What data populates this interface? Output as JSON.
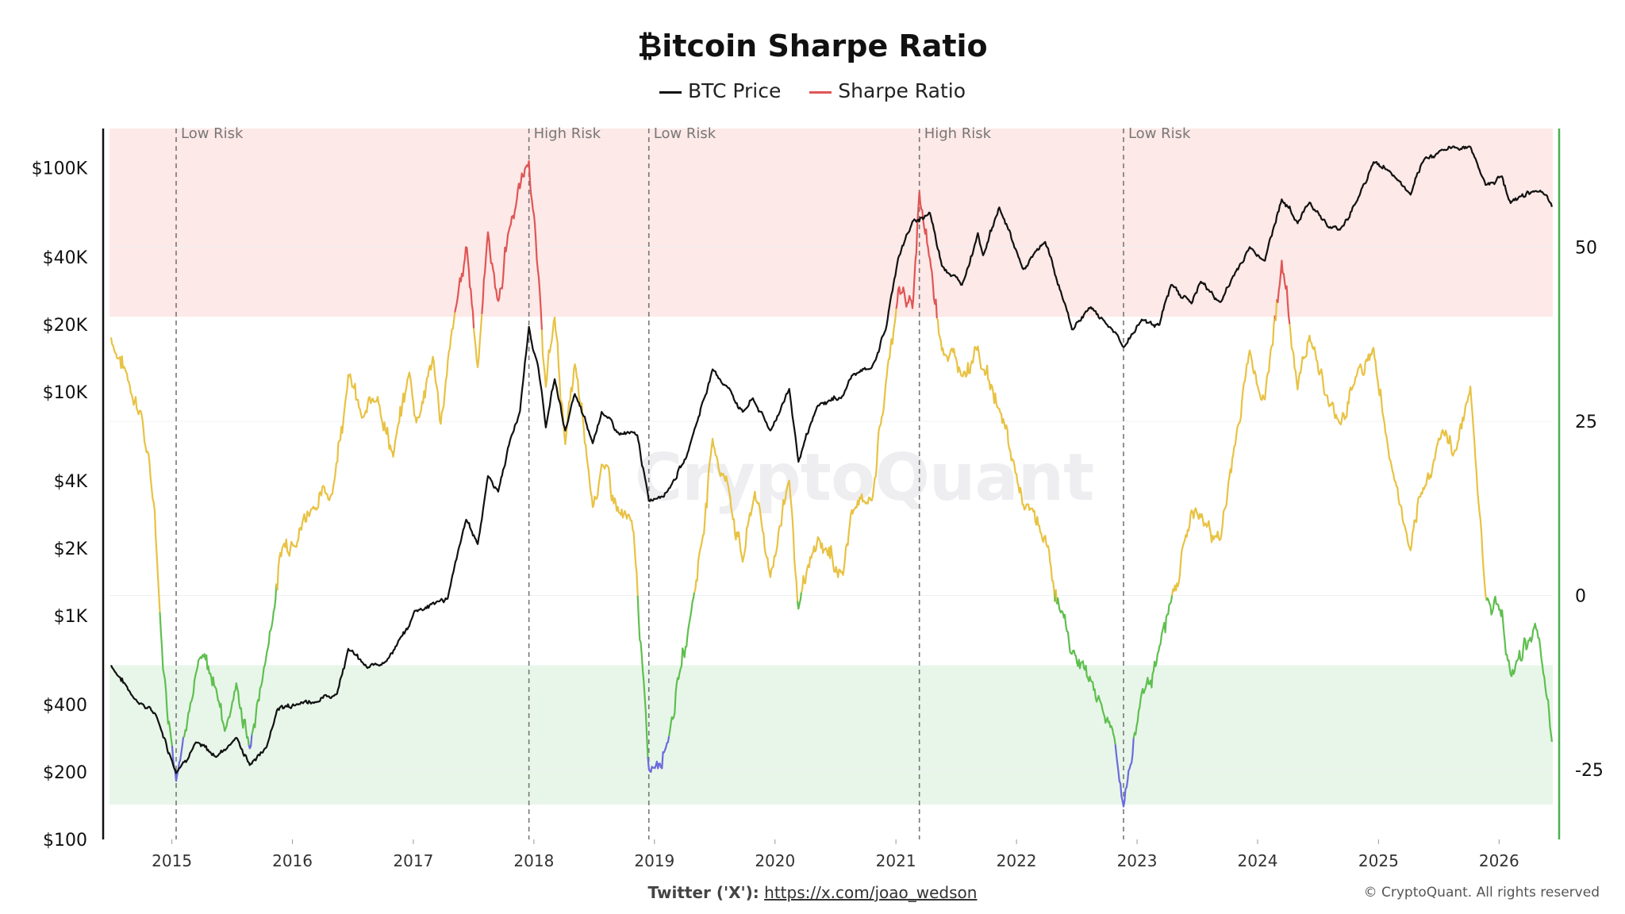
{
  "title": "₿itcoin Sharpe Ratio",
  "legend": [
    {
      "label": "BTC Price",
      "color": "#111111"
    },
    {
      "label": "Sharpe Ratio",
      "color": "#e05555"
    }
  ],
  "watermark": "CryptoQuant",
  "footer": {
    "label": "Twitter ('X'):",
    "link": "https://x.com/joao_wedson"
  },
  "copyright": "© CryptoQuant. All rights reserved",
  "colors": {
    "price": "#111111",
    "sharpe_high": "#e05555",
    "sharpe_mid": "#e8c243",
    "sharpe_low": "#5fbf4f",
    "sharpe_extreme_low": "#6b6bdc",
    "high_risk_band": "#fde9e7",
    "low_risk_band": "#e8f6ea",
    "right_axis": "#4caf50"
  },
  "chart_data": {
    "type": "line",
    "x_range": [
      "2014-07-01",
      "2026-06-15"
    ],
    "x_tick_labels": [
      "2015",
      "2016",
      "2017",
      "2018",
      "2019",
      "2020",
      "2021",
      "2022",
      "2023",
      "2024",
      "2025",
      "2026"
    ],
    "y_left": {
      "scale": "log",
      "range": [
        100,
        150000
      ],
      "tick_labels": [
        "$100",
        "$200",
        "$400",
        "$1K",
        "$2K",
        "$4K",
        "$10K",
        "$20K",
        "$40K",
        "$100K"
      ],
      "tick_values": [
        100,
        200,
        400,
        1000,
        2000,
        4000,
        10000,
        20000,
        40000,
        100000
      ]
    },
    "y_right": {
      "scale": "linear",
      "range": [
        -35,
        67
      ],
      "tick_labels": [
        "50",
        "25",
        "0",
        "-25"
      ],
      "tick_values": [
        50,
        25,
        0,
        -25
      ]
    },
    "bands": [
      {
        "name": "high-risk",
        "from": 40,
        "to": 67
      },
      {
        "name": "low-risk",
        "from": -30,
        "to": -10
      }
    ],
    "thresholds": {
      "high": 40,
      "low": 0,
      "extreme_low": -21
    },
    "annotations": [
      {
        "date": "2015-01-14",
        "label": "Low Risk"
      },
      {
        "date": "2017-12-17",
        "label": "High Risk"
      },
      {
        "date": "2018-12-15",
        "label": "Low Risk"
      },
      {
        "date": "2021-03-13",
        "label": "High Risk"
      },
      {
        "date": "2022-11-21",
        "label": "Low Risk"
      }
    ],
    "series": [
      {
        "name": "BTC Price",
        "axis": "left",
        "points": [
          [
            "2014-07-01",
            600
          ],
          [
            "2014-09-15",
            420
          ],
          [
            "2014-11-15",
            360
          ],
          [
            "2015-01-14",
            200
          ],
          [
            "2015-03-15",
            270
          ],
          [
            "2015-05-15",
            235
          ],
          [
            "2015-07-15",
            285
          ],
          [
            "2015-08-25",
            215
          ],
          [
            "2015-10-15",
            260
          ],
          [
            "2015-11-15",
            380
          ],
          [
            "2016-01-15",
            410
          ],
          [
            "2016-03-15",
            415
          ],
          [
            "2016-05-15",
            450
          ],
          [
            "2016-06-18",
            720
          ],
          [
            "2016-08-15",
            580
          ],
          [
            "2016-10-15",
            640
          ],
          [
            "2016-12-20",
            900
          ],
          [
            "2017-01-05",
            1050
          ],
          [
            "2017-03-15",
            1150
          ],
          [
            "2017-04-15",
            1200
          ],
          [
            "2017-06-10",
            2700
          ],
          [
            "2017-07-15",
            2100
          ],
          [
            "2017-08-15",
            4200
          ],
          [
            "2017-09-15",
            3600
          ],
          [
            "2017-10-20",
            6000
          ],
          [
            "2017-11-20",
            8200
          ],
          [
            "2017-12-17",
            19500
          ],
          [
            "2018-01-15",
            12500
          ],
          [
            "2018-02-06",
            7000
          ],
          [
            "2018-03-05",
            11400
          ],
          [
            "2018-04-06",
            6700
          ],
          [
            "2018-05-05",
            9800
          ],
          [
            "2018-06-28",
            5900
          ],
          [
            "2018-07-25",
            8200
          ],
          [
            "2018-09-15",
            6500
          ],
          [
            "2018-11-10",
            6400
          ],
          [
            "2018-12-15",
            3250
          ],
          [
            "2019-02-08",
            3600
          ],
          [
            "2019-04-05",
            5000
          ],
          [
            "2019-06-26",
            12500
          ],
          [
            "2019-08-15",
            10300
          ],
          [
            "2019-09-25",
            8100
          ],
          [
            "2019-10-26",
            9300
          ],
          [
            "2019-12-18",
            6700
          ],
          [
            "2020-02-13",
            10300
          ],
          [
            "2020-03-12",
            4900
          ],
          [
            "2020-05-10",
            8700
          ],
          [
            "2020-07-25",
            9600
          ],
          [
            "2020-08-20",
            11800
          ],
          [
            "2020-10-20",
            12800
          ],
          [
            "2020-12-01",
            19000
          ],
          [
            "2021-01-08",
            40000
          ],
          [
            "2021-02-20",
            57000
          ],
          [
            "2021-04-14",
            63000
          ],
          [
            "2021-05-20",
            37000
          ],
          [
            "2021-07-20",
            30000
          ],
          [
            "2021-09-06",
            51000
          ],
          [
            "2021-09-22",
            41000
          ],
          [
            "2021-11-10",
            67000
          ],
          [
            "2022-01-22",
            35000
          ],
          [
            "2022-03-29",
            47000
          ],
          [
            "2022-05-12",
            29000
          ],
          [
            "2022-06-18",
            19000
          ],
          [
            "2022-08-14",
            24000
          ],
          [
            "2022-10-15",
            19200
          ],
          [
            "2022-11-21",
            15800
          ],
          [
            "2023-01-15",
            21000
          ],
          [
            "2023-03-10",
            20000
          ],
          [
            "2023-04-14",
            30000
          ],
          [
            "2023-06-15",
            25000
          ],
          [
            "2023-07-13",
            31000
          ],
          [
            "2023-09-11",
            25000
          ],
          [
            "2023-10-25",
            34000
          ],
          [
            "2023-12-08",
            44000
          ],
          [
            "2024-01-23",
            39000
          ],
          [
            "2024-03-14",
            73000
          ],
          [
            "2024-05-01",
            57000
          ],
          [
            "2024-06-06",
            71000
          ],
          [
            "2024-08-05",
            54000
          ],
          [
            "2024-09-06",
            53000
          ],
          [
            "2024-10-29",
            72000
          ],
          [
            "2024-12-17",
            106000
          ],
          [
            "2025-02-03",
            97000
          ],
          [
            "2025-04-08",
            76000
          ],
          [
            "2025-05-22",
            110000
          ],
          [
            "2025-07-14",
            121000
          ],
          [
            "2025-08-14",
            123000
          ],
          [
            "2025-10-06",
            125000
          ],
          [
            "2025-11-21",
            84000
          ],
          [
            "2026-01-10",
            92000
          ],
          [
            "2026-02-05",
            70000
          ],
          [
            "2026-04-20",
            80000
          ],
          [
            "2026-05-15",
            76000
          ],
          [
            "2026-06-10",
            67000
          ]
        ]
      },
      {
        "name": "Sharpe Ratio",
        "axis": "right",
        "points": [
          [
            "2014-07-01",
            37
          ],
          [
            "2014-08-15",
            32
          ],
          [
            "2014-10-01",
            26
          ],
          [
            "2014-11-10",
            12
          ],
          [
            "2014-12-05",
            -10
          ],
          [
            "2015-01-14",
            -26
          ],
          [
            "2015-02-20",
            -16
          ],
          [
            "2015-04-01",
            -9
          ],
          [
            "2015-05-15",
            -13
          ],
          [
            "2015-06-10",
            -19
          ],
          [
            "2015-07-15",
            -13
          ],
          [
            "2015-08-25",
            -22
          ],
          [
            "2015-10-01",
            -12
          ],
          [
            "2015-11-05",
            -2
          ],
          [
            "2015-12-01",
            7
          ],
          [
            "2016-01-01",
            8
          ],
          [
            "2016-03-01",
            13
          ],
          [
            "2016-05-01",
            15
          ],
          [
            "2016-06-18",
            32
          ],
          [
            "2016-08-01",
            25
          ],
          [
            "2016-09-15",
            29
          ],
          [
            "2016-11-01",
            20
          ],
          [
            "2016-12-20",
            32
          ],
          [
            "2017-01-10",
            25
          ],
          [
            "2017-03-01",
            34
          ],
          [
            "2017-03-25",
            25
          ],
          [
            "2017-05-10",
            41
          ],
          [
            "2017-06-12",
            50
          ],
          [
            "2017-07-15",
            33
          ],
          [
            "2017-08-15",
            52
          ],
          [
            "2017-09-15",
            42
          ],
          [
            "2017-10-20",
            53
          ],
          [
            "2017-12-17",
            63
          ],
          [
            "2018-01-10",
            48
          ],
          [
            "2018-02-06",
            30
          ],
          [
            "2018-03-05",
            40
          ],
          [
            "2018-04-06",
            22
          ],
          [
            "2018-05-05",
            33
          ],
          [
            "2018-06-28",
            13
          ],
          [
            "2018-07-25",
            19
          ],
          [
            "2018-09-15",
            12
          ],
          [
            "2018-10-30",
            9
          ],
          [
            "2018-12-15",
            -25
          ],
          [
            "2019-02-08",
            -21
          ],
          [
            "2019-03-15",
            -12
          ],
          [
            "2019-04-20",
            -3
          ],
          [
            "2019-05-25",
            8
          ],
          [
            "2019-06-26",
            22
          ],
          [
            "2019-08-15",
            15
          ],
          [
            "2019-09-25",
            5
          ],
          [
            "2019-11-01",
            15
          ],
          [
            "2019-12-18",
            3
          ],
          [
            "2020-02-13",
            17
          ],
          [
            "2020-03-12",
            -2
          ],
          [
            "2020-05-10",
            8
          ],
          [
            "2020-07-25",
            3
          ],
          [
            "2020-08-20",
            12
          ],
          [
            "2020-10-20",
            14
          ],
          [
            "2020-12-01",
            30
          ],
          [
            "2021-01-08",
            44
          ],
          [
            "2021-02-20",
            41
          ],
          [
            "2021-03-13",
            58
          ],
          [
            "2021-04-14",
            48
          ],
          [
            "2021-05-20",
            36
          ],
          [
            "2021-07-20",
            32
          ],
          [
            "2021-09-06",
            36
          ],
          [
            "2021-09-22",
            33
          ],
          [
            "2021-11-10",
            27
          ],
          [
            "2022-01-22",
            13
          ],
          [
            "2022-03-29",
            8
          ],
          [
            "2022-05-12",
            -2
          ],
          [
            "2022-06-18",
            -8
          ],
          [
            "2022-08-14",
            -12
          ],
          [
            "2022-10-15",
            -19
          ],
          [
            "2022-11-21",
            -30
          ],
          [
            "2023-01-15",
            -14
          ],
          [
            "2023-03-10",
            -8
          ],
          [
            "2023-04-14",
            -1
          ],
          [
            "2023-06-15",
            12
          ],
          [
            "2023-07-13",
            11
          ],
          [
            "2023-09-11",
            8
          ],
          [
            "2023-10-25",
            22
          ],
          [
            "2023-12-08",
            35
          ],
          [
            "2024-01-23",
            28
          ],
          [
            "2024-03-14",
            48
          ],
          [
            "2024-05-01",
            30
          ],
          [
            "2024-06-06",
            38
          ],
          [
            "2024-08-05",
            27
          ],
          [
            "2024-09-06",
            25
          ],
          [
            "2024-10-29",
            32
          ],
          [
            "2024-12-17",
            35
          ],
          [
            "2025-02-03",
            20
          ],
          [
            "2025-04-08",
            6
          ],
          [
            "2025-05-22",
            16
          ],
          [
            "2025-07-14",
            24
          ],
          [
            "2025-08-14",
            20
          ],
          [
            "2025-10-06",
            30
          ],
          [
            "2025-11-21",
            0
          ],
          [
            "2026-01-10",
            -2
          ],
          [
            "2026-02-05",
            -12
          ],
          [
            "2026-04-20",
            -4
          ],
          [
            "2026-05-15",
            -12
          ],
          [
            "2026-06-10",
            -21
          ]
        ]
      }
    ]
  }
}
